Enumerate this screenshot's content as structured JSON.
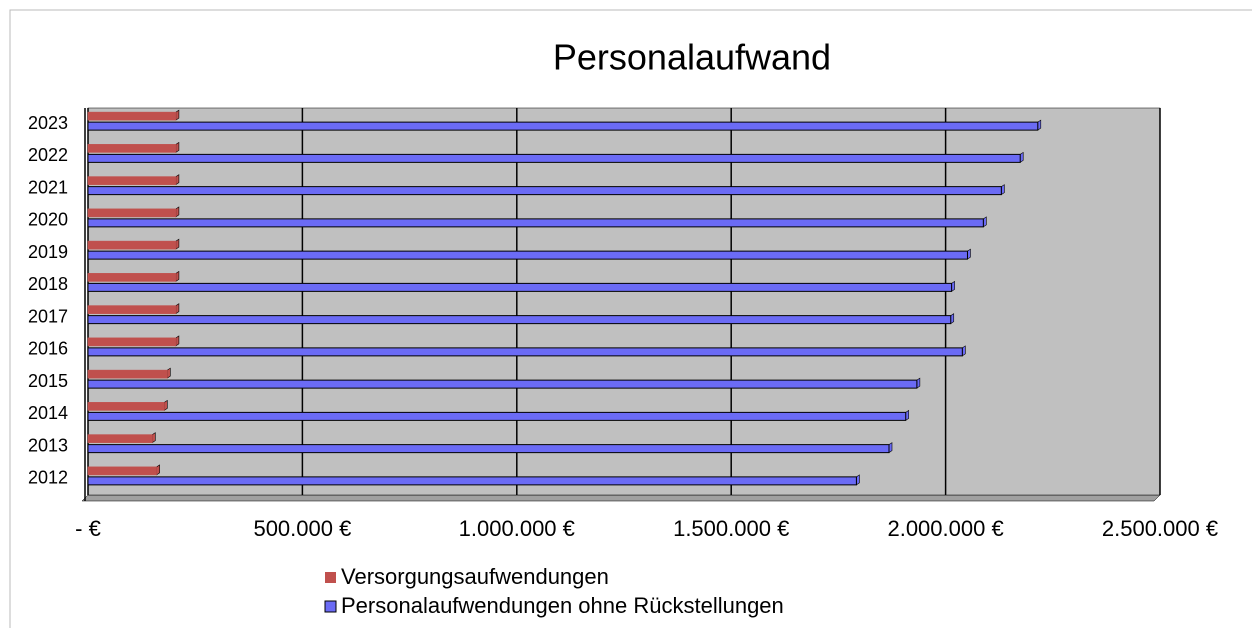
{
  "chart_data": {
    "type": "bar",
    "orientation": "horizontal",
    "title": "Personalaufwand",
    "categories": [
      "2012",
      "2013",
      "2014",
      "2015",
      "2016",
      "2017",
      "2018",
      "2019",
      "2020",
      "2021",
      "2022",
      "2023"
    ],
    "series": [
      {
        "name": "Versorgungsaufwendungen",
        "color": "#c0504d",
        "values": [
          160000,
          150000,
          178000,
          185000,
          205000,
          205000,
          205000,
          205000,
          205000,
          205000,
          205000,
          205000
        ]
      },
      {
        "name": "Personalaufwendungen ohne Rückstellungen",
        "color": "#6b6bf5",
        "values": [
          1792000,
          1868000,
          1907000,
          1933000,
          2039000,
          2012000,
          2014000,
          2051000,
          2088000,
          2130000,
          2174000,
          2215000
        ]
      }
    ],
    "xlim": [
      0,
      2500000
    ],
    "xticks": [
      {
        "value": 0,
        "label": "-   €"
      },
      {
        "value": 500000,
        "label": "500.000 €"
      },
      {
        "value": 1000000,
        "label": "1.000.000 €"
      },
      {
        "value": 1500000,
        "label": "1.500.000 €"
      },
      {
        "value": 2000000,
        "label": "2.000.000 €"
      },
      {
        "value": 2500000,
        "label": "2.500.000 €"
      }
    ],
    "grid": true,
    "legend": "bottom",
    "plot_background": "#c0c0c0"
  }
}
